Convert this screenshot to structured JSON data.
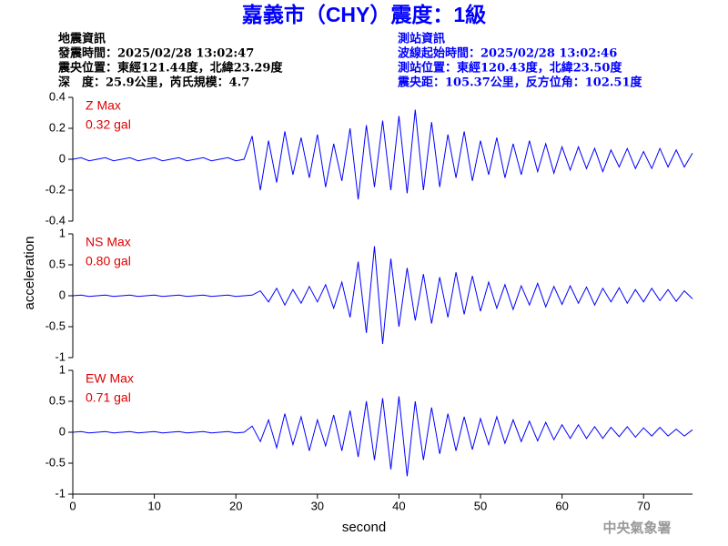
{
  "header": {
    "title": "嘉義市（CHY）震度：1級",
    "left": [
      "地震資訊",
      "發震時間：2025/02/28 13:02:47",
      "震央位置：東經121.44度，北緯23.29度",
      "深　度：25.9公里，芮氏規模：4.7"
    ],
    "right": [
      "測站資訊",
      "波線起始時間：2025/02/28 13:02:46",
      "測站位置：東經120.43度，北緯23.50度",
      "震央距：105.37公里，反方位角：102.51度"
    ]
  },
  "footer": "中央氣象署",
  "chart_data": [
    {
      "type": "line",
      "annotations": [
        "Z Max",
        "0.32 gal"
      ],
      "color": "#0000ff",
      "ylim": [
        -0.4,
        0.4
      ],
      "yticks": [
        -0.4,
        -0.2,
        0,
        0.2,
        0.4
      ],
      "xlim": [
        0,
        76
      ],
      "x": [
        0,
        1,
        2,
        3,
        4,
        5,
        6,
        7,
        8,
        9,
        10,
        11,
        12,
        13,
        14,
        15,
        16,
        17,
        18,
        19,
        20,
        21,
        22,
        23,
        24,
        25,
        26,
        27,
        28,
        29,
        30,
        31,
        32,
        33,
        34,
        35,
        36,
        37,
        38,
        39,
        40,
        41,
        42,
        43,
        44,
        45,
        46,
        47,
        48,
        49,
        50,
        51,
        52,
        53,
        54,
        55,
        56,
        57,
        58,
        59,
        60,
        61,
        62,
        63,
        64,
        65,
        66,
        67,
        68,
        69,
        70,
        71,
        72,
        73,
        74,
        75,
        76
      ],
      "values": [
        0,
        0.01,
        -0.01,
        0,
        0.01,
        -0.01,
        0,
        0.01,
        -0.01,
        0,
        0.01,
        -0.01,
        0,
        0.01,
        -0.01,
        0,
        0.01,
        -0.01,
        0,
        0.01,
        -0.01,
        0,
        0.15,
        -0.2,
        0.12,
        -0.15,
        0.18,
        -0.1,
        0.14,
        -0.12,
        0.16,
        -0.18,
        0.1,
        -0.14,
        0.2,
        -0.26,
        0.22,
        -0.18,
        0.25,
        -0.2,
        0.28,
        -0.22,
        0.32,
        -0.2,
        0.24,
        -0.18,
        0.16,
        -0.12,
        0.18,
        -0.14,
        0.12,
        -0.1,
        0.14,
        -0.12,
        0.1,
        -0.1,
        0.12,
        -0.08,
        0.1,
        -0.09,
        0.08,
        -0.07,
        0.08,
        -0.06,
        0.07,
        -0.08,
        0.06,
        -0.05,
        0.07,
        -0.06,
        0.05,
        -0.06,
        0.07,
        -0.05,
        0.06,
        -0.05,
        0.04
      ]
    },
    {
      "type": "line",
      "annotations": [
        "NS Max",
        "0.80 gal"
      ],
      "ylabel": "acceleration",
      "color": "#0000ff",
      "ylim": [
        -1,
        1
      ],
      "yticks": [
        -1,
        -0.5,
        0,
        0.5,
        1
      ],
      "xlim": [
        0,
        76
      ],
      "x": [
        0,
        1,
        2,
        3,
        4,
        5,
        6,
        7,
        8,
        9,
        10,
        11,
        12,
        13,
        14,
        15,
        16,
        17,
        18,
        19,
        20,
        21,
        22,
        23,
        24,
        25,
        26,
        27,
        28,
        29,
        30,
        31,
        32,
        33,
        34,
        35,
        36,
        37,
        38,
        39,
        40,
        41,
        42,
        43,
        44,
        45,
        46,
        47,
        48,
        49,
        50,
        51,
        52,
        53,
        54,
        55,
        56,
        57,
        58,
        59,
        60,
        61,
        62,
        63,
        64,
        65,
        66,
        67,
        68,
        69,
        70,
        71,
        72,
        73,
        74,
        75,
        76
      ],
      "values": [
        0,
        0.01,
        -0.01,
        0,
        0.01,
        -0.01,
        0,
        0.01,
        -0.01,
        0,
        0.01,
        -0.01,
        0,
        0.01,
        -0.01,
        0,
        0.01,
        -0.01,
        0,
        0.01,
        -0.01,
        0,
        0.01,
        0.08,
        -0.1,
        0.12,
        -0.15,
        0.1,
        -0.12,
        0.15,
        -0.1,
        0.18,
        -0.2,
        0.22,
        -0.35,
        0.55,
        -0.6,
        0.8,
        -0.78,
        0.6,
        -0.5,
        0.45,
        -0.4,
        0.35,
        -0.45,
        0.3,
        -0.35,
        0.38,
        -0.3,
        0.32,
        -0.25,
        0.22,
        -0.2,
        0.18,
        -0.22,
        0.16,
        -0.15,
        0.2,
        -0.18,
        0.15,
        -0.14,
        0.16,
        -0.12,
        0.14,
        -0.15,
        0.12,
        -0.1,
        0.13,
        -0.12,
        0.1,
        -0.1,
        0.12,
        -0.08,
        0.1,
        -0.09,
        0.08,
        -0.05
      ]
    },
    {
      "type": "line",
      "annotations": [
        "EW Max",
        "0.71 gal"
      ],
      "xlabel": "second",
      "color": "#0000ff",
      "ylim": [
        -1,
        1
      ],
      "yticks": [
        -1,
        -0.5,
        0,
        0.5,
        1
      ],
      "xlim": [
        0,
        76
      ],
      "xticks": [
        0,
        10,
        20,
        30,
        40,
        50,
        60,
        70
      ],
      "x": [
        0,
        1,
        2,
        3,
        4,
        5,
        6,
        7,
        8,
        9,
        10,
        11,
        12,
        13,
        14,
        15,
        16,
        17,
        18,
        19,
        20,
        21,
        22,
        23,
        24,
        25,
        26,
        27,
        28,
        29,
        30,
        31,
        32,
        33,
        34,
        35,
        36,
        37,
        38,
        39,
        40,
        41,
        42,
        43,
        44,
        45,
        46,
        47,
        48,
        49,
        50,
        51,
        52,
        53,
        54,
        55,
        56,
        57,
        58,
        59,
        60,
        61,
        62,
        63,
        64,
        65,
        66,
        67,
        68,
        69,
        70,
        71,
        72,
        73,
        74,
        75,
        76
      ],
      "values": [
        0,
        0.01,
        -0.01,
        0,
        0.01,
        -0.01,
        0,
        0.01,
        -0.01,
        0,
        0.01,
        -0.01,
        0,
        0.01,
        -0.01,
        0,
        0.01,
        -0.01,
        0,
        0.01,
        -0.01,
        0,
        0.1,
        -0.15,
        0.2,
        -0.25,
        0.3,
        -0.2,
        0.25,
        -0.3,
        0.2,
        -0.22,
        0.28,
        -0.3,
        0.35,
        -0.4,
        0.5,
        -0.45,
        0.55,
        -0.6,
        0.58,
        -0.71,
        0.5,
        -0.45,
        0.4,
        -0.35,
        0.3,
        -0.3,
        0.25,
        -0.28,
        0.22,
        -0.2,
        0.25,
        -0.18,
        0.2,
        -0.15,
        0.18,
        -0.14,
        0.16,
        -0.12,
        0.12,
        -0.1,
        0.12,
        -0.1,
        0.09,
        -0.1,
        0.08,
        -0.07,
        0.09,
        -0.08,
        0.07,
        -0.06,
        0.08,
        -0.06,
        0.05,
        -0.06,
        0.04
      ]
    }
  ]
}
